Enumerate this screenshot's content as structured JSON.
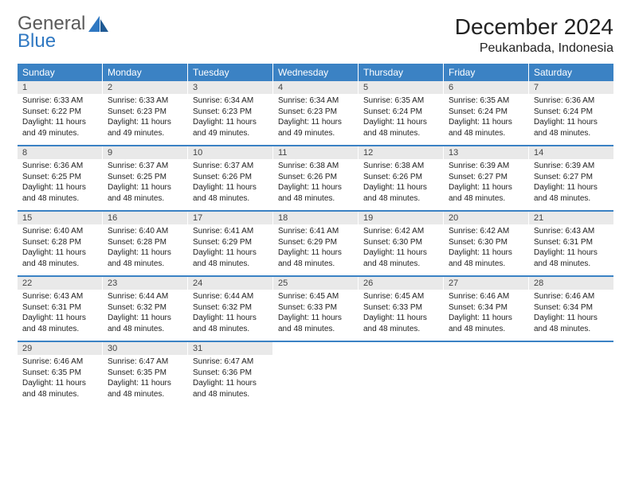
{
  "logo": {
    "word1": "General",
    "word2": "Blue"
  },
  "title": "December 2024",
  "location": "Peukanbada, Indonesia",
  "colors": {
    "header_bg": "#3b82c4",
    "header_text": "#ffffff",
    "daynum_bg": "#e9e9e9",
    "week_divider": "#3b82c4",
    "page_bg": "#ffffff",
    "text": "#222222",
    "logo_gray": "#5a5a5a",
    "logo_blue": "#2f78c2"
  },
  "weekdays": [
    "Sunday",
    "Monday",
    "Tuesday",
    "Wednesday",
    "Thursday",
    "Friday",
    "Saturday"
  ],
  "days": [
    {
      "n": "1",
      "sr": "6:33 AM",
      "ss": "6:22 PM",
      "dl": "11 hours and 49 minutes."
    },
    {
      "n": "2",
      "sr": "6:33 AM",
      "ss": "6:23 PM",
      "dl": "11 hours and 49 minutes."
    },
    {
      "n": "3",
      "sr": "6:34 AM",
      "ss": "6:23 PM",
      "dl": "11 hours and 49 minutes."
    },
    {
      "n": "4",
      "sr": "6:34 AM",
      "ss": "6:23 PM",
      "dl": "11 hours and 49 minutes."
    },
    {
      "n": "5",
      "sr": "6:35 AM",
      "ss": "6:24 PM",
      "dl": "11 hours and 48 minutes."
    },
    {
      "n": "6",
      "sr": "6:35 AM",
      "ss": "6:24 PM",
      "dl": "11 hours and 48 minutes."
    },
    {
      "n": "7",
      "sr": "6:36 AM",
      "ss": "6:24 PM",
      "dl": "11 hours and 48 minutes."
    },
    {
      "n": "8",
      "sr": "6:36 AM",
      "ss": "6:25 PM",
      "dl": "11 hours and 48 minutes."
    },
    {
      "n": "9",
      "sr": "6:37 AM",
      "ss": "6:25 PM",
      "dl": "11 hours and 48 minutes."
    },
    {
      "n": "10",
      "sr": "6:37 AM",
      "ss": "6:26 PM",
      "dl": "11 hours and 48 minutes."
    },
    {
      "n": "11",
      "sr": "6:38 AM",
      "ss": "6:26 PM",
      "dl": "11 hours and 48 minutes."
    },
    {
      "n": "12",
      "sr": "6:38 AM",
      "ss": "6:26 PM",
      "dl": "11 hours and 48 minutes."
    },
    {
      "n": "13",
      "sr": "6:39 AM",
      "ss": "6:27 PM",
      "dl": "11 hours and 48 minutes."
    },
    {
      "n": "14",
      "sr": "6:39 AM",
      "ss": "6:27 PM",
      "dl": "11 hours and 48 minutes."
    },
    {
      "n": "15",
      "sr": "6:40 AM",
      "ss": "6:28 PM",
      "dl": "11 hours and 48 minutes."
    },
    {
      "n": "16",
      "sr": "6:40 AM",
      "ss": "6:28 PM",
      "dl": "11 hours and 48 minutes."
    },
    {
      "n": "17",
      "sr": "6:41 AM",
      "ss": "6:29 PM",
      "dl": "11 hours and 48 minutes."
    },
    {
      "n": "18",
      "sr": "6:41 AM",
      "ss": "6:29 PM",
      "dl": "11 hours and 48 minutes."
    },
    {
      "n": "19",
      "sr": "6:42 AM",
      "ss": "6:30 PM",
      "dl": "11 hours and 48 minutes."
    },
    {
      "n": "20",
      "sr": "6:42 AM",
      "ss": "6:30 PM",
      "dl": "11 hours and 48 minutes."
    },
    {
      "n": "21",
      "sr": "6:43 AM",
      "ss": "6:31 PM",
      "dl": "11 hours and 48 minutes."
    },
    {
      "n": "22",
      "sr": "6:43 AM",
      "ss": "6:31 PM",
      "dl": "11 hours and 48 minutes."
    },
    {
      "n": "23",
      "sr": "6:44 AM",
      "ss": "6:32 PM",
      "dl": "11 hours and 48 minutes."
    },
    {
      "n": "24",
      "sr": "6:44 AM",
      "ss": "6:32 PM",
      "dl": "11 hours and 48 minutes."
    },
    {
      "n": "25",
      "sr": "6:45 AM",
      "ss": "6:33 PM",
      "dl": "11 hours and 48 minutes."
    },
    {
      "n": "26",
      "sr": "6:45 AM",
      "ss": "6:33 PM",
      "dl": "11 hours and 48 minutes."
    },
    {
      "n": "27",
      "sr": "6:46 AM",
      "ss": "6:34 PM",
      "dl": "11 hours and 48 minutes."
    },
    {
      "n": "28",
      "sr": "6:46 AM",
      "ss": "6:34 PM",
      "dl": "11 hours and 48 minutes."
    },
    {
      "n": "29",
      "sr": "6:46 AM",
      "ss": "6:35 PM",
      "dl": "11 hours and 48 minutes."
    },
    {
      "n": "30",
      "sr": "6:47 AM",
      "ss": "6:35 PM",
      "dl": "11 hours and 48 minutes."
    },
    {
      "n": "31",
      "sr": "6:47 AM",
      "ss": "6:36 PM",
      "dl": "11 hours and 48 minutes."
    }
  ],
  "labels": {
    "sunrise": "Sunrise:",
    "sunset": "Sunset:",
    "daylight": "Daylight:"
  },
  "grid": {
    "start_offset": 0,
    "total_cells": 35
  }
}
